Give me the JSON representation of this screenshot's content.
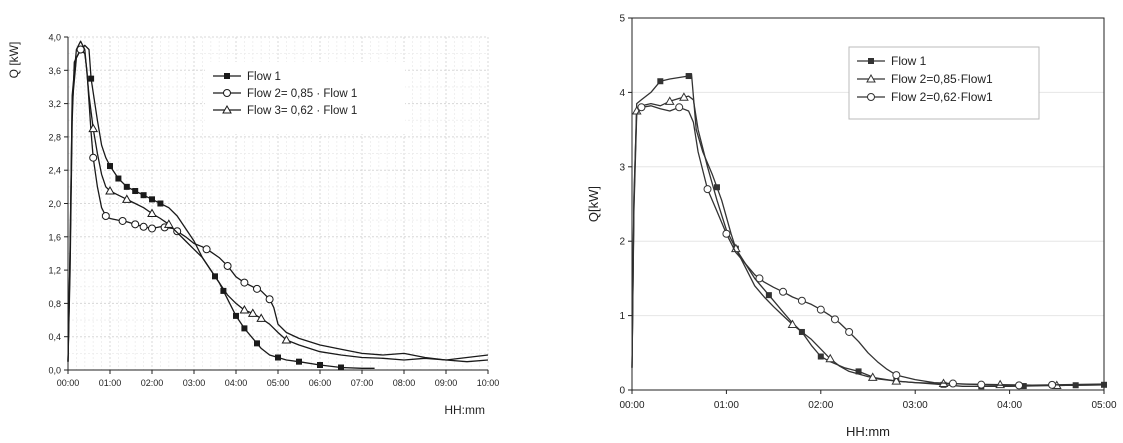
{
  "chart_data": [
    {
      "type": "line",
      "xlabel": "HH:mm",
      "ylabel": "Q [kW]",
      "xlim": [
        0,
        10
      ],
      "ylim": [
        0,
        4
      ],
      "x_tick_labels": [
        "00:00",
        "01:00",
        "02:00",
        "03:00",
        "04:00",
        "05:00",
        "06:00",
        "07:00",
        "08:00",
        "09:00",
        "10:00"
      ],
      "y_tick_labels": [
        "0,0",
        "0,4",
        "0,8",
        "1,2",
        "1,6",
        "2,0",
        "2,4",
        "2,8",
        "3,2",
        "3,6",
        "4,0"
      ],
      "y_tick_values": [
        0,
        0.4,
        0.8,
        1.2,
        1.6,
        2.0,
        2.4,
        2.8,
        3.2,
        3.6,
        4.0
      ],
      "grid": true,
      "legend_position": "top-center",
      "x_units": "hours",
      "series": [
        {
          "name": "Flow 1",
          "marker": "square-filled",
          "points": [
            [
              0,
              0.1
            ],
            [
              0.05,
              1.2
            ],
            [
              0.1,
              3.0
            ],
            [
              0.15,
              3.7
            ],
            [
              0.25,
              3.8
            ],
            [
              0.4,
              3.9
            ],
            [
              0.5,
              3.85
            ],
            [
              0.55,
              3.5
            ],
            [
              0.7,
              3.0
            ],
            [
              0.8,
              2.7
            ],
            [
              0.9,
              2.55
            ],
            [
              1.0,
              2.45
            ],
            [
              1.2,
              2.3
            ],
            [
              1.4,
              2.2
            ],
            [
              1.6,
              2.15
            ],
            [
              1.8,
              2.1
            ],
            [
              2.0,
              2.05
            ],
            [
              2.2,
              2.0
            ],
            [
              2.4,
              1.95
            ],
            [
              2.6,
              1.85
            ],
            [
              2.8,
              1.7
            ],
            [
              3.0,
              1.55
            ],
            [
              3.2,
              1.35
            ],
            [
              3.4,
              1.2
            ],
            [
              3.6,
              1.05
            ],
            [
              3.8,
              0.85
            ],
            [
              4.0,
              0.65
            ],
            [
              4.2,
              0.5
            ],
            [
              4.4,
              0.38
            ],
            [
              4.6,
              0.26
            ],
            [
              4.8,
              0.18
            ],
            [
              5.0,
              0.15
            ],
            [
              5.2,
              0.12
            ],
            [
              5.5,
              0.1
            ],
            [
              6.0,
              0.06
            ],
            [
              6.5,
              0.03
            ],
            [
              7.0,
              0.02
            ],
            [
              7.3,
              0.02
            ]
          ],
          "marker_x": [
            0.55,
            1.0,
            1.2,
            1.4,
            1.6,
            1.8,
            2.0,
            2.2,
            3.5,
            3.7,
            4.0,
            4.2,
            4.5,
            5.0,
            5.5,
            6.0,
            6.5
          ]
        },
        {
          "name": "Flow 2= 0,85 · Flow 1",
          "marker": "circle-open",
          "points": [
            [
              0,
              0.1
            ],
            [
              0.05,
              1.5
            ],
            [
              0.1,
              3.2
            ],
            [
              0.2,
              3.75
            ],
            [
              0.3,
              3.85
            ],
            [
              0.4,
              3.8
            ],
            [
              0.45,
              3.6
            ],
            [
              0.55,
              2.85
            ],
            [
              0.6,
              2.55
            ],
            [
              0.7,
              2.2
            ],
            [
              0.8,
              1.95
            ],
            [
              0.9,
              1.85
            ],
            [
              1.0,
              1.82
            ],
            [
              1.2,
              1.8
            ],
            [
              1.4,
              1.78
            ],
            [
              1.6,
              1.75
            ],
            [
              1.8,
              1.72
            ],
            [
              2.0,
              1.7
            ],
            [
              2.2,
              1.72
            ],
            [
              2.5,
              1.7
            ],
            [
              2.8,
              1.6
            ],
            [
              3.0,
              1.52
            ],
            [
              3.2,
              1.48
            ],
            [
              3.4,
              1.42
            ],
            [
              3.6,
              1.35
            ],
            [
              3.8,
              1.25
            ],
            [
              4.0,
              1.12
            ],
            [
              4.2,
              1.05
            ],
            [
              4.4,
              1.0
            ],
            [
              4.6,
              0.95
            ],
            [
              4.8,
              0.85
            ],
            [
              4.9,
              0.75
            ],
            [
              5.0,
              0.55
            ],
            [
              5.2,
              0.45
            ],
            [
              5.5,
              0.38
            ],
            [
              6.0,
              0.3
            ],
            [
              6.5,
              0.25
            ],
            [
              7.0,
              0.2
            ],
            [
              7.5,
              0.18
            ],
            [
              8.0,
              0.2
            ],
            [
              8.5,
              0.15
            ],
            [
              9.0,
              0.12
            ],
            [
              9.5,
              0.15
            ],
            [
              10.0,
              0.18
            ]
          ],
          "marker_x": [
            0.3,
            0.6,
            0.9,
            1.3,
            1.6,
            1.8,
            2.0,
            2.3,
            2.6,
            3.3,
            3.8,
            4.2,
            4.5,
            4.8
          ]
        },
        {
          "name": "Flow 3= 0,62 · Flow 1",
          "marker": "triangle-open",
          "points": [
            [
              0,
              0.1
            ],
            [
              0.05,
              1.4
            ],
            [
              0.1,
              3.3
            ],
            [
              0.2,
              3.85
            ],
            [
              0.3,
              3.95
            ],
            [
              0.4,
              3.85
            ],
            [
              0.5,
              3.3
            ],
            [
              0.6,
              2.9
            ],
            [
              0.7,
              2.6
            ],
            [
              0.8,
              2.35
            ],
            [
              0.9,
              2.2
            ],
            [
              1.0,
              2.15
            ],
            [
              1.2,
              2.1
            ],
            [
              1.4,
              2.05
            ],
            [
              1.6,
              2.0
            ],
            [
              1.8,
              1.95
            ],
            [
              2.0,
              1.88
            ],
            [
              2.2,
              1.82
            ],
            [
              2.4,
              1.75
            ],
            [
              2.6,
              1.65
            ],
            [
              2.8,
              1.55
            ],
            [
              3.0,
              1.45
            ],
            [
              3.2,
              1.35
            ],
            [
              3.4,
              1.2
            ],
            [
              3.6,
              1.05
            ],
            [
              3.8,
              0.9
            ],
            [
              4.0,
              0.8
            ],
            [
              4.2,
              0.72
            ],
            [
              4.4,
              0.68
            ],
            [
              4.6,
              0.62
            ],
            [
              4.8,
              0.55
            ],
            [
              5.0,
              0.45
            ],
            [
              5.2,
              0.36
            ],
            [
              5.5,
              0.3
            ],
            [
              6.0,
              0.22
            ],
            [
              6.5,
              0.18
            ],
            [
              7.0,
              0.15
            ],
            [
              7.5,
              0.14
            ],
            [
              8.0,
              0.12
            ],
            [
              8.5,
              0.14
            ],
            [
              9.0,
              0.12
            ],
            [
              9.5,
              0.1
            ],
            [
              10.0,
              0.12
            ]
          ],
          "marker_x": [
            0.6,
            1.0,
            1.4,
            2.0,
            2.4,
            4.2,
            4.4,
            4.6,
            5.2
          ]
        }
      ]
    },
    {
      "type": "line",
      "xlabel": "HH:mm",
      "ylabel": "Q[kW]",
      "xlim": [
        0,
        5
      ],
      "ylim": [
        0,
        5
      ],
      "x_tick_labels": [
        "00:00",
        "01:00",
        "02:00",
        "03:00",
        "04:00",
        "05:00"
      ],
      "y_tick_labels": [
        "0",
        "1",
        "2",
        "3",
        "4",
        "5"
      ],
      "y_tick_values": [
        0,
        1,
        2,
        3,
        4,
        5
      ],
      "grid": true,
      "legend_position": "top-right",
      "x_units": "hours",
      "series": [
        {
          "name": "Flow 1",
          "marker": "square-filled",
          "points": [
            [
              0,
              0.3
            ],
            [
              0.02,
              2.5
            ],
            [
              0.05,
              3.85
            ],
            [
              0.1,
              3.9
            ],
            [
              0.2,
              4.0
            ],
            [
              0.3,
              4.15
            ],
            [
              0.4,
              4.18
            ],
            [
              0.5,
              4.2
            ],
            [
              0.6,
              4.22
            ],
            [
              0.63,
              4.25
            ],
            [
              0.68,
              3.5
            ],
            [
              0.75,
              3.2
            ],
            [
              0.85,
              2.9
            ],
            [
              0.95,
              2.55
            ],
            [
              1.05,
              2.1
            ],
            [
              1.1,
              1.9
            ],
            [
              1.2,
              1.7
            ],
            [
              1.3,
              1.5
            ],
            [
              1.4,
              1.35
            ],
            [
              1.5,
              1.2
            ],
            [
              1.6,
              1.05
            ],
            [
              1.7,
              0.9
            ],
            [
              1.8,
              0.78
            ],
            [
              1.9,
              0.6
            ],
            [
              2.0,
              0.45
            ],
            [
              2.1,
              0.38
            ],
            [
              2.25,
              0.3
            ],
            [
              2.4,
              0.25
            ],
            [
              2.5,
              0.2
            ],
            [
              2.6,
              0.15
            ],
            [
              2.8,
              0.12
            ],
            [
              3.0,
              0.1
            ],
            [
              3.2,
              0.08
            ],
            [
              3.5,
              0.05
            ],
            [
              4.0,
              0.05
            ],
            [
              4.5,
              0.06
            ],
            [
              5.0,
              0.07
            ]
          ],
          "marker_x": [
            0.3,
            0.6,
            0.9,
            1.1,
            1.45,
            1.8,
            2.0,
            2.4,
            2.8,
            3.3,
            3.7,
            4.15,
            4.7,
            5.0
          ]
        },
        {
          "name": "Flow 2=0,85·Flow1",
          "marker": "triangle-open",
          "points": [
            [
              0,
              0.3
            ],
            [
              0.02,
              2.6
            ],
            [
              0.05,
              3.75
            ],
            [
              0.1,
              3.82
            ],
            [
              0.2,
              3.85
            ],
            [
              0.3,
              3.82
            ],
            [
              0.4,
              3.88
            ],
            [
              0.5,
              3.92
            ],
            [
              0.6,
              3.95
            ],
            [
              0.65,
              3.9
            ],
            [
              0.7,
              3.5
            ],
            [
              0.8,
              3.0
            ],
            [
              0.9,
              2.55
            ],
            [
              1.0,
              2.15
            ],
            [
              1.1,
              1.9
            ],
            [
              1.2,
              1.65
            ],
            [
              1.3,
              1.4
            ],
            [
              1.4,
              1.25
            ],
            [
              1.5,
              1.12
            ],
            [
              1.6,
              1.0
            ],
            [
              1.7,
              0.88
            ],
            [
              1.8,
              0.78
            ],
            [
              1.9,
              0.68
            ],
            [
              2.0,
              0.55
            ],
            [
              2.1,
              0.42
            ],
            [
              2.2,
              0.32
            ],
            [
              2.3,
              0.25
            ],
            [
              2.5,
              0.18
            ],
            [
              2.8,
              0.12
            ],
            [
              3.0,
              0.1
            ],
            [
              3.5,
              0.08
            ],
            [
              4.0,
              0.07
            ],
            [
              4.5,
              0.06
            ],
            [
              5.0,
              0.07
            ]
          ],
          "marker_x": [
            0.05,
            0.4,
            0.55,
            1.1,
            1.7,
            2.1,
            2.55,
            2.8,
            3.3,
            3.9,
            4.5
          ]
        },
        {
          "name": "Flow 2=0,62·Flow1",
          "marker": "circle-open",
          "points": [
            [
              0,
              0.3
            ],
            [
              0.02,
              2.4
            ],
            [
              0.05,
              3.7
            ],
            [
              0.1,
              3.8
            ],
            [
              0.2,
              3.82
            ],
            [
              0.3,
              3.78
            ],
            [
              0.4,
              3.75
            ],
            [
              0.5,
              3.8
            ],
            [
              0.6,
              3.75
            ],
            [
              0.65,
              3.6
            ],
            [
              0.7,
              3.2
            ],
            [
              0.8,
              2.7
            ],
            [
              0.9,
              2.4
            ],
            [
              1.0,
              2.1
            ],
            [
              1.1,
              1.85
            ],
            [
              1.2,
              1.7
            ],
            [
              1.3,
              1.55
            ],
            [
              1.4,
              1.45
            ],
            [
              1.5,
              1.38
            ],
            [
              1.6,
              1.32
            ],
            [
              1.7,
              1.25
            ],
            [
              1.8,
              1.2
            ],
            [
              1.9,
              1.15
            ],
            [
              2.0,
              1.08
            ],
            [
              2.1,
              1.0
            ],
            [
              2.2,
              0.9
            ],
            [
              2.3,
              0.78
            ],
            [
              2.4,
              0.65
            ],
            [
              2.5,
              0.5
            ],
            [
              2.6,
              0.38
            ],
            [
              2.7,
              0.28
            ],
            [
              2.8,
              0.2
            ],
            [
              3.0,
              0.14
            ],
            [
              3.2,
              0.1
            ],
            [
              3.5,
              0.08
            ],
            [
              4.0,
              0.06
            ],
            [
              4.5,
              0.07
            ],
            [
              5.0,
              0.08
            ]
          ],
          "marker_x": [
            0.1,
            0.5,
            0.8,
            1.0,
            1.35,
            1.6,
            1.8,
            2.0,
            2.15,
            2.3,
            2.8,
            3.4,
            3.7,
            4.1,
            4.45
          ]
        }
      ]
    }
  ]
}
